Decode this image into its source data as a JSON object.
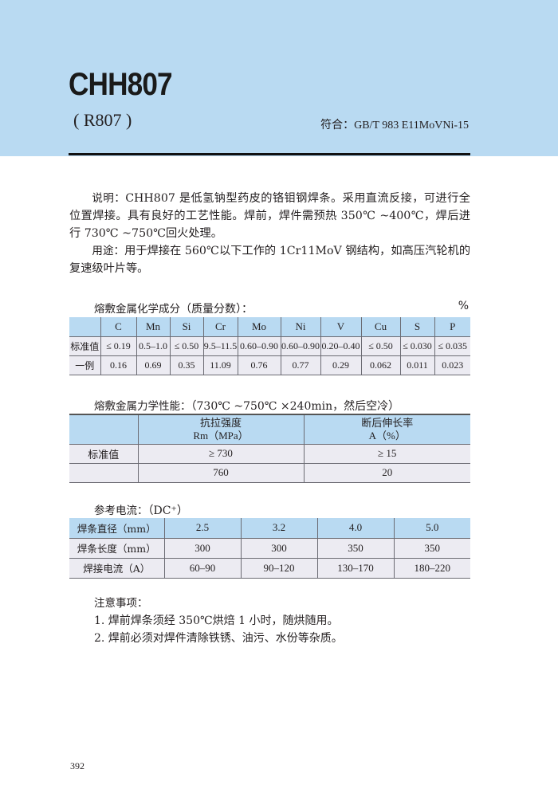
{
  "header": {
    "title": "CHH807",
    "subtitle": "( R807 )",
    "standard": "符合：GB/T 983 E11MoVNi-15"
  },
  "description": {
    "label": "说明：",
    "text": "CHH807 是低氢钠型药皮的铬钼钢焊条。采用直流反接，可进行全位置焊接。具有良好的工艺性能。焊前，焊件需预热 350℃ ~400℃，焊后进行 730℃ ~750℃回火处理。"
  },
  "usage": {
    "label": "用途：",
    "text": "用于焊接在 560℃以下工作的 1Cr11MoV 钢结构，如高压汽轮机的复速级叶片等。"
  },
  "chem": {
    "title": "熔敷金属化学成分",
    "title_note": "（质量分数）：",
    "unit": "%",
    "headers": [
      "",
      "C",
      "Mn",
      "Si",
      "Cr",
      "Mo",
      "Ni",
      "V",
      "Cu",
      "S",
      "P"
    ],
    "rows": [
      [
        "标准值",
        "≤ 0.19",
        "0.5–1.0",
        "≤ 0.50",
        "9.5–11.5",
        "0.60–0.90",
        "0.60–0.90",
        "0.20–0.40",
        "≤ 0.50",
        "≤ 0.030",
        "≤ 0.035"
      ],
      [
        "一例",
        "0.16",
        "0.69",
        "0.35",
        "11.09",
        "0.76",
        "0.77",
        "0.29",
        "0.062",
        "0.011",
        "0.023"
      ]
    ]
  },
  "mech": {
    "title": "熔敷金属力学性能：",
    "title_note": "（730℃ ~750℃ ×240min，然后空冷）",
    "headers": [
      [
        "",
        ""
      ],
      [
        "抗拉强度",
        "Rm（MPa）"
      ],
      [
        "断后伸长率",
        "A（%）"
      ]
    ],
    "rows": [
      [
        "标准值",
        "≥ 730",
        "≥ 15"
      ],
      [
        "",
        "760",
        "20"
      ]
    ]
  },
  "current": {
    "title": "参考电流：",
    "title_note": "（DC⁺）",
    "rows": [
      [
        "焊条直径（mm）",
        "2.5",
        "3.2",
        "4.0",
        "5.0"
      ],
      [
        "焊条长度（mm）",
        "300",
        "300",
        "350",
        "350"
      ],
      [
        "焊接电流（A）",
        "60–90",
        "90–120",
        "130–170",
        "180–220"
      ]
    ]
  },
  "notes": {
    "title": "注意事项：",
    "items": [
      "1. 焊前焊条须经 350℃烘焙 1 小时，随烘随用。",
      "2. 焊前必须对焊件清除铁锈、油污、水份等杂质。"
    ]
  },
  "page_number": "392"
}
